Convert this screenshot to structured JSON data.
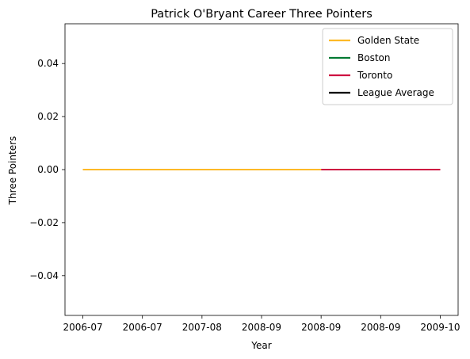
{
  "chart_data": {
    "type": "line",
    "title": "Patrick O'Bryant Career Three Pointers",
    "xlabel": "Year",
    "ylabel": "Three Pointers",
    "x_tick_labels": [
      "2006-07",
      "2006-07",
      "2007-08",
      "2008-09",
      "2008-09",
      "2008-09",
      "2009-10"
    ],
    "x_tick_positions": [
      0,
      1,
      2,
      3,
      4,
      5,
      6
    ],
    "y_ticks": [
      -0.04,
      -0.02,
      0.0,
      0.02,
      0.04
    ],
    "y_tick_labels": [
      "−0.04",
      "−0.02",
      "0.00",
      "0.02",
      "0.04"
    ],
    "xlim": [
      -0.3,
      6.3
    ],
    "ylim": [
      -0.055,
      0.055
    ],
    "grid": false,
    "legend_placement": "top-right",
    "series": [
      {
        "name": "Golden State",
        "color": "#FDB927",
        "x": [
          0,
          1,
          2,
          3,
          4
        ],
        "y": [
          0,
          0,
          0,
          0,
          0
        ]
      },
      {
        "name": "Boston",
        "color": "#007A33",
        "x": [],
        "y": []
      },
      {
        "name": "Toronto",
        "color": "#CE1141",
        "x": [
          4,
          5,
          6
        ],
        "y": [
          0,
          0,
          0
        ]
      },
      {
        "name": "League Average",
        "color": "#000000",
        "x": [],
        "y": []
      }
    ]
  }
}
